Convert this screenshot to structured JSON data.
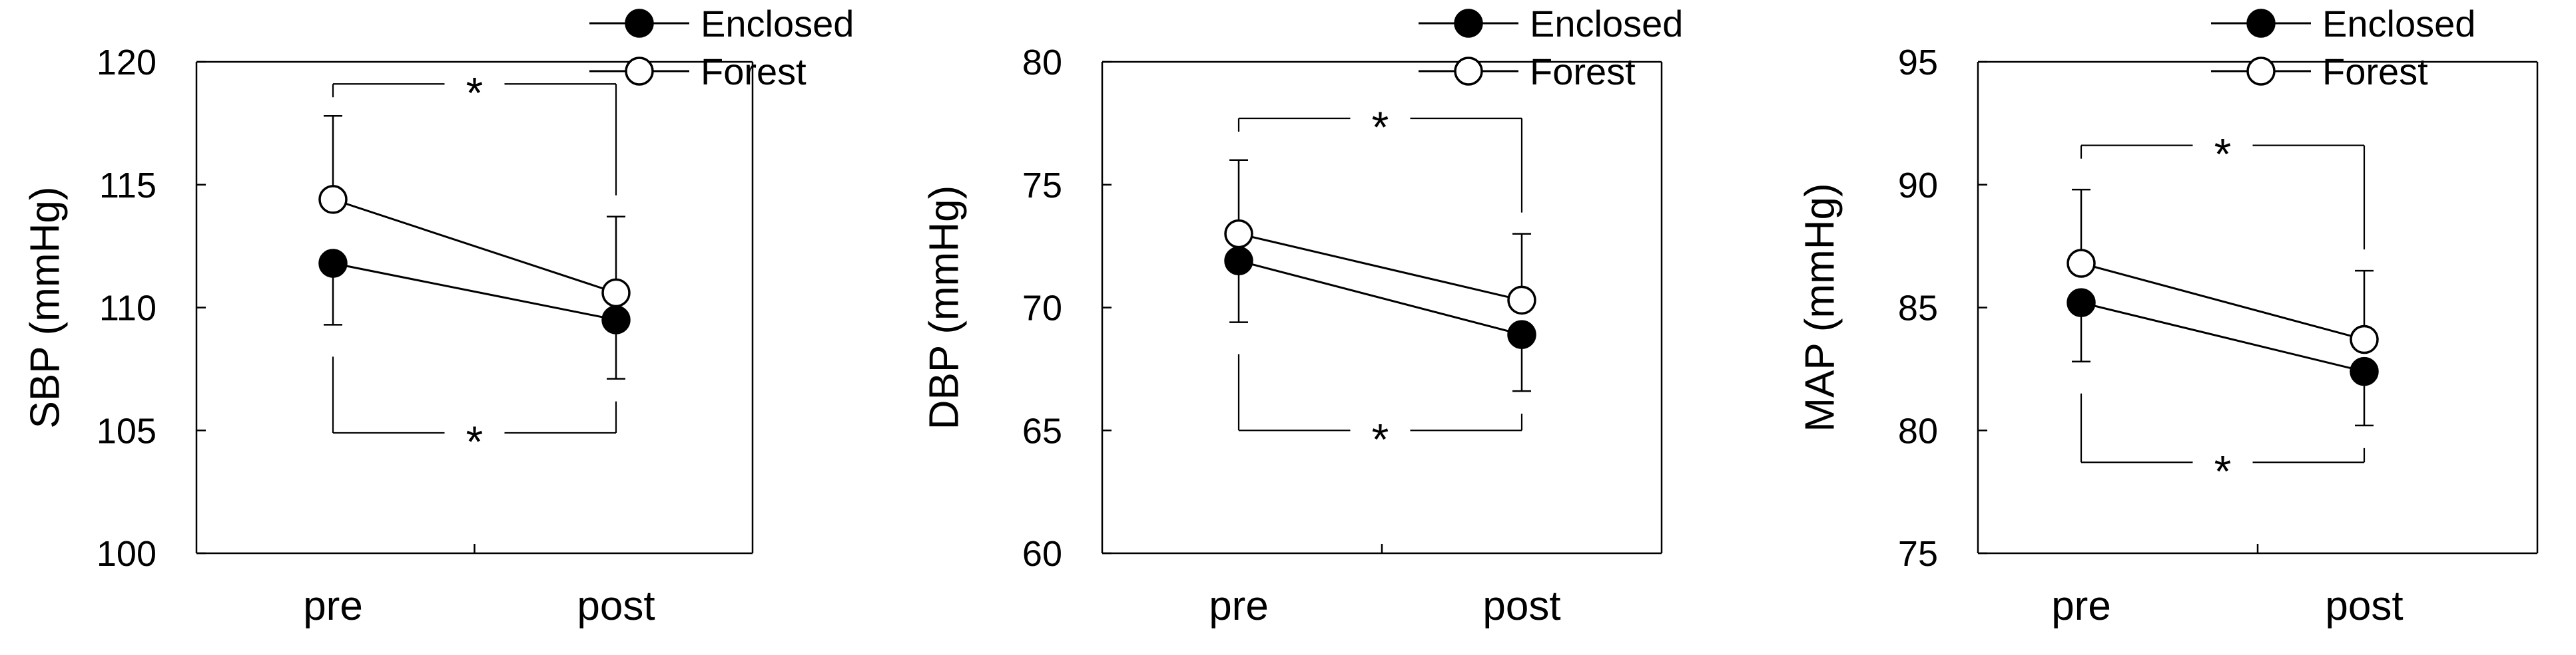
{
  "chart_data": [
    {
      "type": "line",
      "categories": [
        "pre",
        "post"
      ],
      "ylabel": "SBP (mmHg)",
      "ylim": [
        100,
        120
      ],
      "yticks": [
        100,
        105,
        110,
        115,
        120
      ],
      "grid": false,
      "legend_position": "top-right",
      "series": [
        {
          "name": "Enclosed",
          "marker": "filled-circle",
          "values": [
            111.8,
            109.5
          ],
          "error_lower": [
            2.5,
            2.4
          ]
        },
        {
          "name": "Forest",
          "marker": "open-circle",
          "values": [
            114.4,
            110.6
          ],
          "error_upper": [
            3.4,
            3.1
          ]
        }
      ],
      "annotations": {
        "top_bracket": {
          "text": "*",
          "y": 119.1
        },
        "bottom_bracket": {
          "text": "*",
          "y": 104.9
        }
      }
    },
    {
      "type": "line",
      "categories": [
        "pre",
        "post"
      ],
      "ylabel": "DBP (mmHg)",
      "ylim": [
        60,
        80
      ],
      "yticks": [
        60,
        65,
        70,
        75,
        80
      ],
      "grid": false,
      "legend_position": "top-right",
      "series": [
        {
          "name": "Enclosed",
          "marker": "filled-circle",
          "values": [
            71.9,
            68.9
          ],
          "error_lower": [
            2.5,
            2.3
          ]
        },
        {
          "name": "Forest",
          "marker": "open-circle",
          "values": [
            73.0,
            70.3
          ],
          "error_upper": [
            3.0,
            2.7
          ]
        }
      ],
      "annotations": {
        "top_bracket": {
          "text": "*",
          "y": 77.7
        },
        "bottom_bracket": {
          "text": "*",
          "y": 65.0
        }
      }
    },
    {
      "type": "line",
      "categories": [
        "pre",
        "post"
      ],
      "ylabel": "MAP (mmHg)",
      "ylim": [
        75,
        95
      ],
      "yticks": [
        75,
        80,
        85,
        90,
        95
      ],
      "grid": false,
      "legend_position": "top-right",
      "series": [
        {
          "name": "Enclosed",
          "marker": "filled-circle",
          "values": [
            85.2,
            82.4
          ],
          "error_lower": [
            2.4,
            2.2
          ]
        },
        {
          "name": "Forest",
          "marker": "open-circle",
          "values": [
            86.8,
            83.7
          ],
          "error_upper": [
            3.0,
            2.8
          ]
        }
      ],
      "annotations": {
        "top_bracket": {
          "text": "*",
          "y": 91.6
        },
        "bottom_bracket": {
          "text": "*",
          "y": 78.7
        }
      }
    }
  ]
}
